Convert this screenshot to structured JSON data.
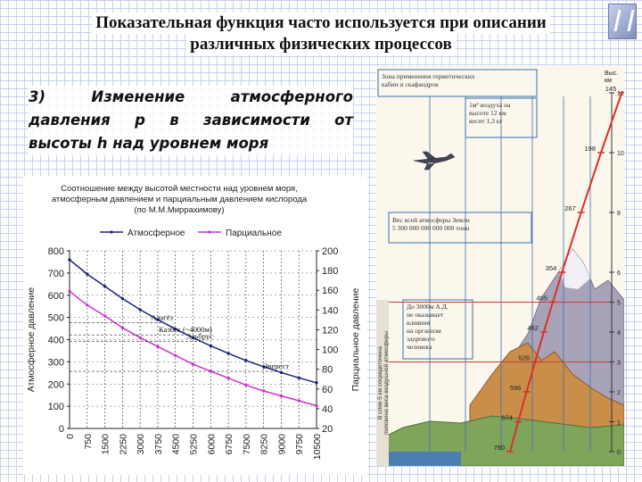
{
  "slide": {
    "title_line1": "Показательная функция часто используется при описании",
    "title_line2": "различных физических процессов",
    "subtitle_line1": "3) Изменение атмосферного",
    "subtitle_line2": "давления p в зависимости от",
    "subtitle_line3": "высоты h над уровнем моря"
  },
  "chart_data": {
    "type": "line",
    "title": "Соотношение между высотой местности над уровнем моря, атмосферным давлением и парциальным давлением кислорода (по М.М.Миррахимову)",
    "title_lines": [
      "Соотношение между высотой местности над уровнем моря,",
      "атмосферным давлением и парциальным давлением кислорода",
      "(по М.М.Миррахимову)"
    ],
    "xlabel": "",
    "ylabel": "Атмосферное давление",
    "ylabel_right": "Парциальное давление",
    "x": [
      0,
      750,
      1500,
      2250,
      3000,
      3750,
      4500,
      5250,
      6000,
      6750,
      7500,
      8250,
      9000,
      9750,
      10500
    ],
    "x_ticks": [
      "0",
      "750",
      "1500",
      "2250",
      "3000",
      "3750",
      "4500",
      "5250",
      "6000",
      "6750",
      "7500",
      "8250",
      "9000",
      "9750",
      "10500"
    ],
    "ylim": [
      0,
      800
    ],
    "y_ticks": [
      "0",
      "100",
      "200",
      "300",
      "400",
      "500",
      "600",
      "700",
      "800"
    ],
    "ylim_right": [
      20,
      200
    ],
    "y_ticks_right": [
      "20",
      "40",
      "60",
      "80",
      "100",
      "120",
      "140",
      "160",
      "180",
      "200"
    ],
    "legend": "top",
    "series": [
      {
        "name": "Атмосферное",
        "axis": "left",
        "color": "#1a237e",
        "values": [
          760,
          695,
          640,
          585,
          535,
          490,
          448,
          408,
          372,
          338,
          306,
          278,
          252,
          228,
          206
        ]
      },
      {
        "name": "Парциальное",
        "axis": "right",
        "color": "#cc33cc",
        "values": [
          159,
          145,
          134,
          122,
          112,
          103,
          94,
          85,
          78,
          71,
          64,
          58,
          53,
          48,
          43
        ]
      }
    ],
    "annotations": [
      {
        "text": "Алагёз",
        "x": 4000
      },
      {
        "text": "Казбек (~4000м)",
        "x": 5000
      },
      {
        "text": "Эльбрус",
        "x": 5600
      },
      {
        "text": "Эверест",
        "x": 8850
      }
    ]
  },
  "poster": {
    "zone_text": [
      "Зона применения герметических",
      "кабин и скафандров"
    ],
    "axis_unit": [
      "Выс.",
      "км"
    ],
    "air_text": [
      "1м³ воздуха на",
      "высоте 12 км",
      "весит 1,3 кг"
    ],
    "weight_text": [
      "Вес всей атмосферы Земли",
      "5 300 000 000 000 000 тонн"
    ],
    "health_text": [
      "До 3000м А.Д.",
      "не оказывает",
      "влияния",
      "на организм",
      "здорового",
      "человека"
    ],
    "layer_text": [
      "В слое 5 км сосредоточена",
      "половина веса воздушной атмосферы"
    ],
    "curve_points": [
      {
        "label": "760",
        "height": 0
      },
      {
        "label": "674",
        "height": 1
      },
      {
        "label": "596",
        "height": 2
      },
      {
        "label": "526",
        "height": 3
      },
      {
        "label": "462",
        "height": 4
      },
      {
        "label": "405",
        "height": 5
      },
      {
        "label": "354",
        "height": 6
      },
      {
        "label": "267",
        "height": 8
      },
      {
        "label": "198",
        "height": 10
      },
      {
        "label": "145",
        "height": 12
      }
    ],
    "right_ticks": [
      "0",
      "1",
      "2",
      "3",
      "4",
      "5",
      "6",
      "8",
      "10",
      "12"
    ]
  }
}
